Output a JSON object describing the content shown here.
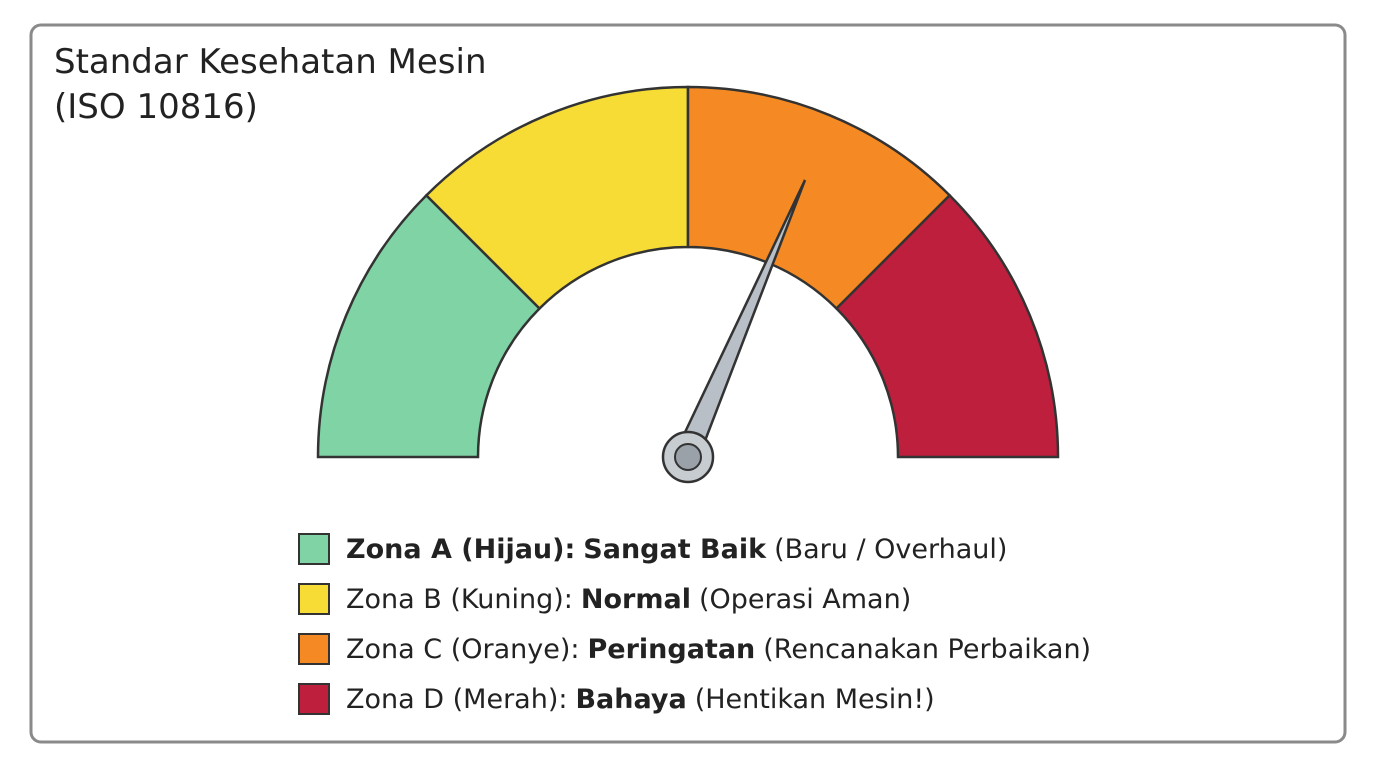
{
  "title_lines": [
    "Standar Kesehatan Mesin",
    "(ISO 10816)"
  ],
  "legend": {
    "items": [
      {
        "color": "#7fd3a5",
        "label": "Zona A (Hijau):",
        "label_bold": true,
        "status": "Sangat Baik",
        "note": "(Baru / Overhaul)"
      },
      {
        "color": "#f6dc35",
        "label": "Zona B (Kuning):",
        "label_bold": false,
        "status": "Normal",
        "note": "(Operasi Aman)"
      },
      {
        "color": "#f58a24",
        "label": "Zona C (Oranye):",
        "label_bold": false,
        "status": "Peringatan",
        "note": "(Rencanakan Perbaikan)"
      },
      {
        "color": "#be1f3d",
        "label": "Zona D (Merah):",
        "label_bold": false,
        "status": "Bahaya",
        "note": "(Hentikan Mesin!)"
      }
    ]
  }
}
